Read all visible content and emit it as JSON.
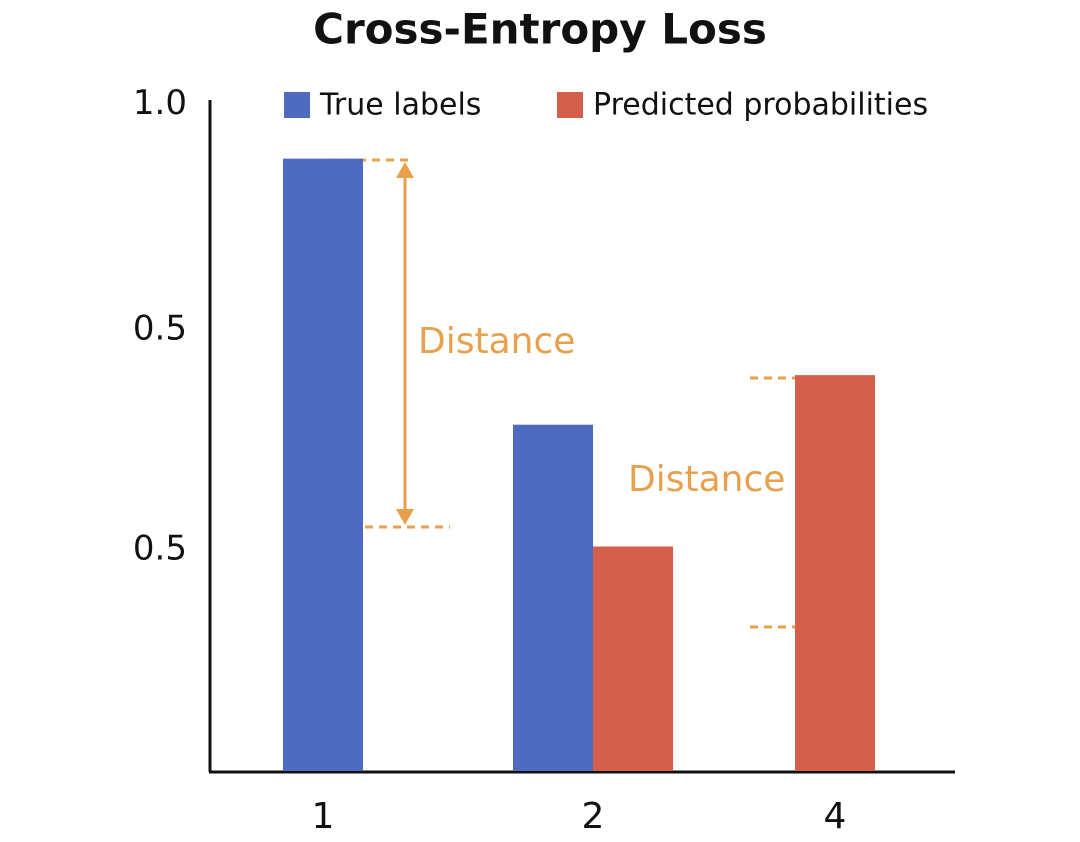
{
  "chart_data": {
    "type": "bar",
    "title": "Cross-Entropy Loss",
    "categories": [
      "1",
      "2",
      "4"
    ],
    "series": [
      {
        "name": "True labels",
        "color": "#4f6bc0",
        "values": [
          0.88,
          0.29,
          null
        ]
      },
      {
        "name": "Predicted probabilities",
        "color": "#d4604c",
        "values": [
          null,
          0.02,
          0.4
        ]
      }
    ],
    "ylim": [
      -0.48,
      1.01
    ],
    "yticks": [
      {
        "value": 1.0,
        "label": "1.0"
      },
      0.5
    ],
    "annotations": [
      "Distance",
      "Distance",
      "0.5"
    ],
    "annotation_color": "#e9a04d",
    "legend": "top"
  }
}
